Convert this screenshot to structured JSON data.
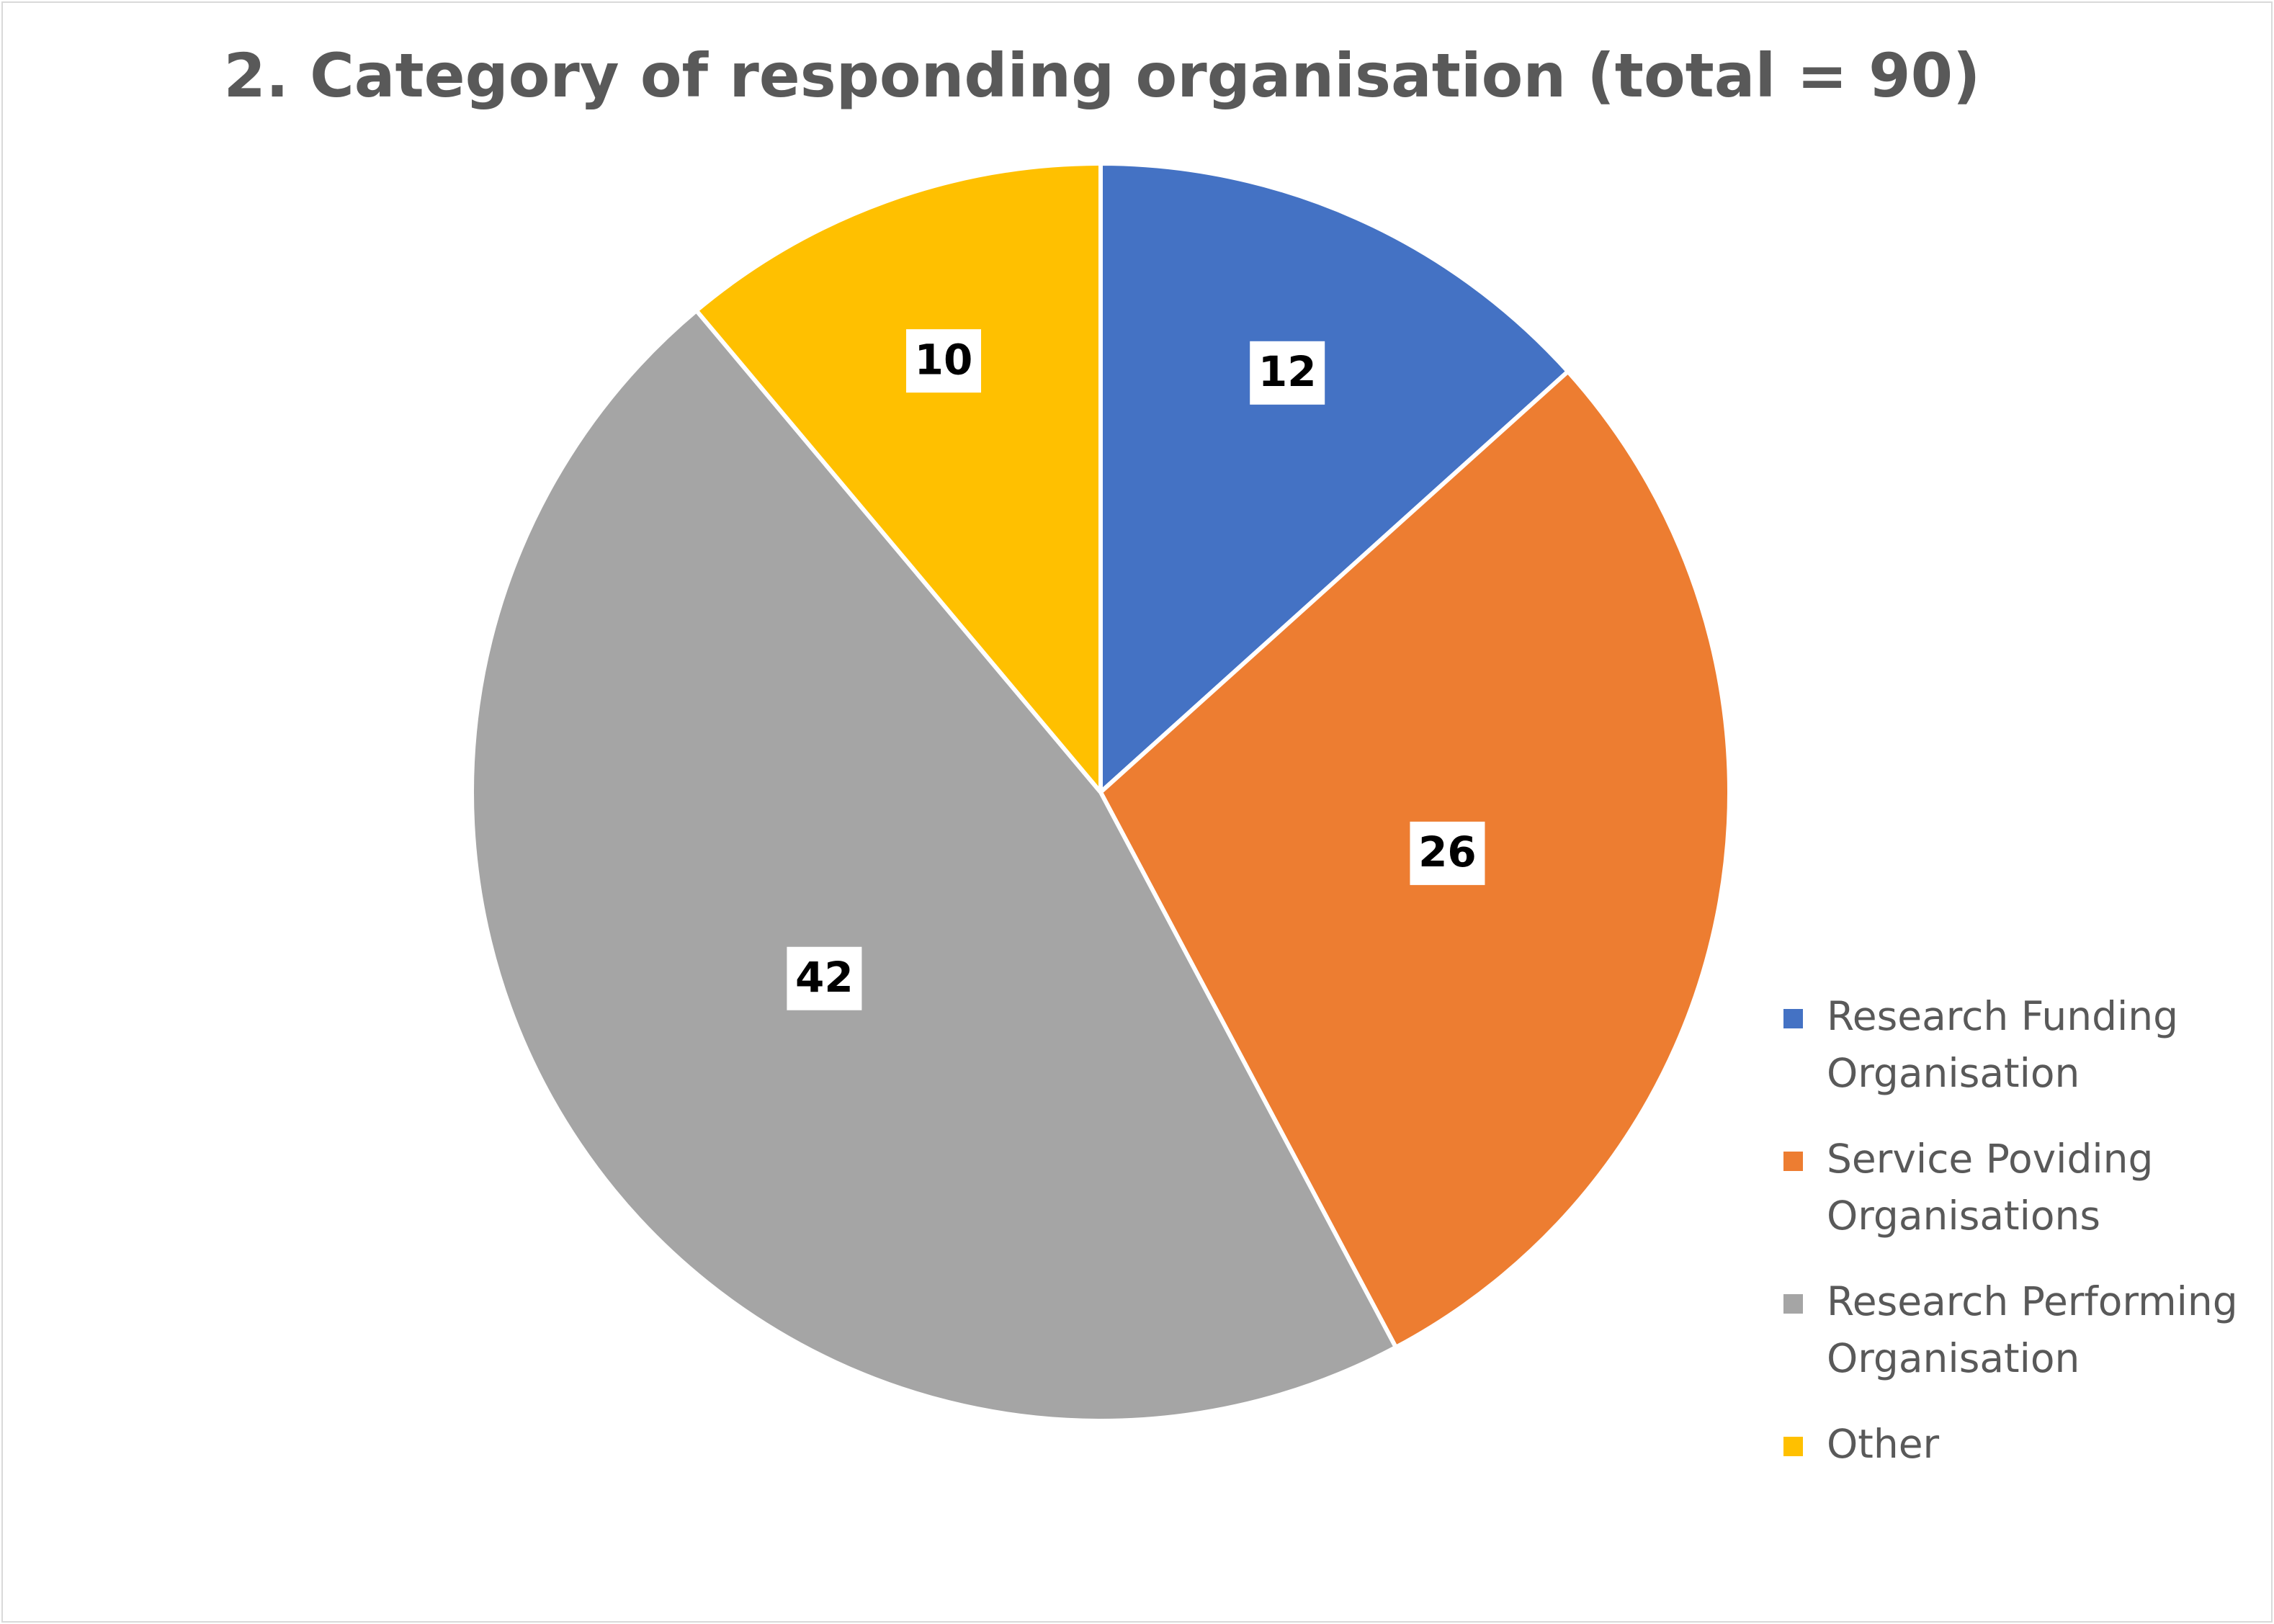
{
  "chart_data": {
    "type": "pie",
    "title": "2. Category of responding organisation (total = 90)",
    "categories": [
      "Research Funding Organisation",
      "Service Poviding Organisations",
      "Research Performing Organisation",
      "Other"
    ],
    "values": [
      12,
      26,
      42,
      10
    ],
    "data_labels": [
      "12",
      "26",
      "42",
      "10"
    ],
    "colors": [
      "#4472C4",
      "#ED7D31",
      "#A5A5A5",
      "#FFC000"
    ],
    "legend_position": "right",
    "start_angle": "12 o'clock",
    "direction": "clockwise"
  },
  "legend": {
    "items": [
      {
        "label": "Research Funding Organisation",
        "color": "#4472C4"
      },
      {
        "label": "Service Poviding Organisations",
        "color": "#ED7D31"
      },
      {
        "label": "Research Performing Organisation",
        "color": "#A5A5A5"
      },
      {
        "label": "Other",
        "color": "#FFC000"
      }
    ]
  }
}
